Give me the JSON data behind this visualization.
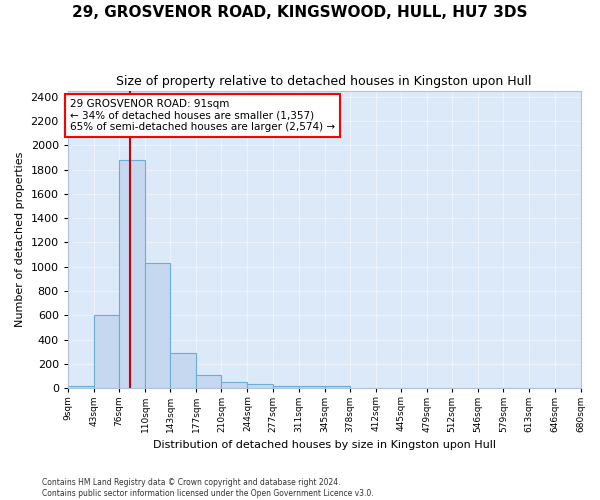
{
  "title": "29, GROSVENOR ROAD, KINGSWOOD, HULL, HU7 3DS",
  "subtitle": "Size of property relative to detached houses in Kingston upon Hull",
  "xlabel": "Distribution of detached houses by size in Kingston upon Hull",
  "ylabel": "Number of detached properties",
  "footnote1": "Contains HM Land Registry data © Crown copyright and database right 2024.",
  "footnote2": "Contains public sector information licensed under the Open Government Licence v3.0.",
  "annotation_line1": "29 GROSVENOR ROAD: 91sqm",
  "annotation_line2": "← 34% of detached houses are smaller (1,357)",
  "annotation_line3": "65% of semi-detached houses are larger (2,574) →",
  "bar_edges": [
    9,
    43,
    76,
    110,
    143,
    177,
    210,
    244,
    277,
    311,
    345,
    378,
    412,
    445,
    479,
    512,
    546,
    579,
    613,
    646,
    680
  ],
  "bar_heights": [
    20,
    600,
    1880,
    1030,
    290,
    110,
    50,
    35,
    20,
    20,
    20,
    0,
    0,
    0,
    0,
    0,
    0,
    0,
    0,
    0
  ],
  "bar_color": "#c5d8f0",
  "bar_edge_color": "#6aaed6",
  "red_line_x": 91,
  "ylim": [
    0,
    2450
  ],
  "yticks": [
    0,
    200,
    400,
    600,
    800,
    1000,
    1200,
    1400,
    1600,
    1800,
    2000,
    2200,
    2400
  ],
  "bg_color": "#dce9f8",
  "grid_color": "#eef3fb",
  "fig_bg": "#ffffff",
  "title_fontsize": 11,
  "subtitle_fontsize": 9
}
